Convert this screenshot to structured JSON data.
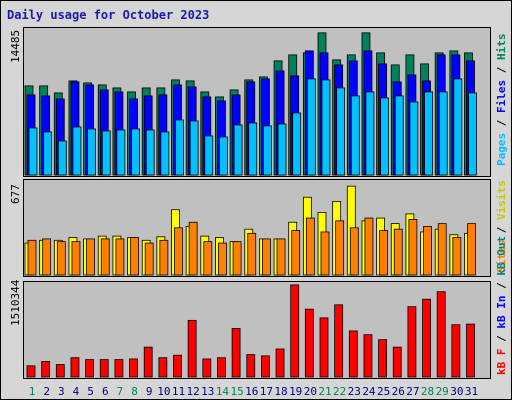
{
  "title": "Daily usage for October 2023",
  "colors": {
    "hits": "#00805c",
    "files": "#0000ff",
    "pages": "#00c0ff",
    "visits": "#ffff00",
    "sites": "#ff8000",
    "kbin": "#0000ff",
    "kbout": "#008080",
    "kbf": "#ff0000",
    "weekend_day": "#00805c",
    "weekday_day": "#000080"
  },
  "chart_data": [
    {
      "type": "bar",
      "title": "Daily usage for October 2023",
      "categories": [
        "1",
        "2",
        "3",
        "4",
        "5",
        "6",
        "7",
        "8",
        "9",
        "10",
        "11",
        "12",
        "13",
        "14",
        "15",
        "16",
        "17",
        "18",
        "19",
        "20",
        "21",
        "22",
        "23",
        "24",
        "25",
        "26",
        "27",
        "28",
        "29",
        "30",
        "31"
      ],
      "ymax_label": "14485",
      "ylim": [
        0,
        14485
      ],
      "series": [
        {
          "name": "Hits",
          "values": [
            8900,
            8900,
            8200,
            9400,
            9200,
            9000,
            8700,
            8300,
            8700,
            8700,
            9500,
            9400,
            8300,
            7800,
            8500,
            9500,
            9800,
            11400,
            12000,
            12200,
            14200,
            11500,
            12000,
            14200,
            12200,
            11000,
            12000,
            11100,
            12200,
            12400,
            12200
          ]
        },
        {
          "name": "Files",
          "values": [
            8000,
            7900,
            7600,
            9300,
            9000,
            8500,
            8300,
            7600,
            7900,
            8000,
            9000,
            8800,
            7800,
            7400,
            8000,
            9300,
            9600,
            10400,
            9900,
            12400,
            12200,
            11000,
            11400,
            12400,
            11100,
            9300,
            10000,
            9400,
            12000,
            12000,
            11400
          ]
        },
        {
          "name": "Pages",
          "values": [
            4700,
            4300,
            3400,
            4800,
            4600,
            4400,
            4500,
            4600,
            4500,
            4300,
            5500,
            5400,
            3900,
            3800,
            5000,
            5200,
            4900,
            5100,
            6200,
            9600,
            9500,
            8700,
            7900,
            8300,
            7700,
            7900,
            7300,
            8300,
            8300,
            9600,
            8200
          ]
        }
      ]
    },
    {
      "type": "bar",
      "ymax_label": "677",
      "ylim": [
        0,
        677
      ],
      "series": [
        {
          "name": "Visits",
          "values": [
            230,
            250,
            250,
            270,
            260,
            280,
            280,
            270,
            250,
            275,
            470,
            350,
            280,
            270,
            240,
            330,
            260,
            260,
            380,
            560,
            450,
            530,
            640,
            390,
            410,
            370,
            440,
            310,
            330,
            290,
            300
          ]
        },
        {
          "name": "Sites",
          "values": [
            250,
            260,
            240,
            240,
            260,
            260,
            260,
            270,
            230,
            250,
            340,
            380,
            240,
            230,
            240,
            300,
            260,
            260,
            320,
            410,
            310,
            390,
            340,
            410,
            320,
            330,
            400,
            350,
            370,
            270,
            370
          ]
        }
      ]
    },
    {
      "type": "bar",
      "ymax_label": "1510344",
      "ylim": [
        0,
        1510344
      ],
      "series": [
        {
          "name": "KB F",
          "values": [
            180000,
            250000,
            200000,
            310000,
            280000,
            280000,
            280000,
            290000,
            480000,
            310000,
            350000,
            910000,
            290000,
            310000,
            780000,
            360000,
            340000,
            450000,
            1480000,
            1090000,
            950000,
            1160000,
            740000,
            680000,
            600000,
            480000,
            1130000,
            1250000,
            1370000,
            840000,
            850000
          ]
        },
        {
          "name": "KB In",
          "values": []
        },
        {
          "name": "KB Out",
          "values": []
        }
      ]
    }
  ],
  "right_labels": {
    "top": [
      {
        "text": "Pages",
        "color": "#00c0ff"
      },
      {
        "text": " / ",
        "color": "#000000"
      },
      {
        "text": "Files",
        "color": "#0000ff"
      },
      {
        "text": " / ",
        "color": "#000000"
      },
      {
        "text": "Hits",
        "color": "#00805c"
      }
    ],
    "middle": [
      {
        "text": "Sites",
        "color": "#ff8000"
      },
      {
        "text": " / ",
        "color": "#000000"
      },
      {
        "text": "Visits",
        "color": "#c8c800"
      }
    ],
    "bottom": [
      {
        "text": "kB F",
        "color": "#ff0000"
      },
      {
        "text": " / ",
        "color": "#000000"
      },
      {
        "text": "kB In",
        "color": "#0000ff"
      },
      {
        "text": " / ",
        "color": "#000000"
      },
      {
        "text": "kB Out",
        "color": "#008080"
      }
    ]
  },
  "weekend_days": [
    1,
    7,
    8,
    14,
    15,
    21,
    22,
    28,
    29
  ]
}
